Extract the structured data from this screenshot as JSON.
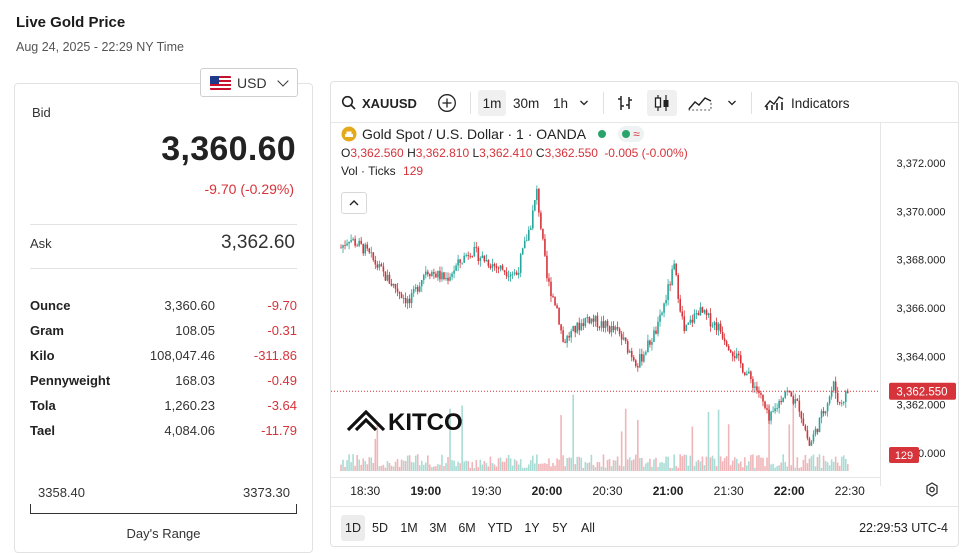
{
  "header": {
    "title": "Live Gold Price",
    "date": "Aug 24, 2025 - 22:29 NY Time"
  },
  "currency": {
    "selected": "USD"
  },
  "quote": {
    "bid_label": "Bid",
    "bid": "3,360.60",
    "change": "-9.70 (-0.29%)",
    "ask_label": "Ask",
    "ask": "3,362.60"
  },
  "units": [
    {
      "name": "Ounce",
      "price": "3,360.60",
      "change": "-9.70"
    },
    {
      "name": "Gram",
      "price": "108.05",
      "change": "-0.31"
    },
    {
      "name": "Kilo",
      "price": "108,047.46",
      "change": "-311.86"
    },
    {
      "name": "Pennyweight",
      "price": "168.03",
      "change": "-0.49"
    },
    {
      "name": "Tola",
      "price": "1,260.23",
      "change": "-3.64"
    },
    {
      "name": "Tael",
      "price": "4,084.06",
      "change": "-11.79"
    }
  ],
  "day_range": {
    "low": "3358.40",
    "high": "3373.30",
    "label": "Day's Range"
  },
  "toolbar": {
    "symbol": "XAUUSD",
    "intervals": [
      "1m",
      "30m",
      "1h"
    ],
    "active_interval": "1m",
    "indicators_label": "Indicators"
  },
  "legend": {
    "title": "Gold Spot / U.S. Dollar · 1 · OANDA",
    "o_label": "O",
    "o": "3,362.560",
    "h_label": "H",
    "h": "3,362.810",
    "l_label": "L",
    "l": "3,362.410",
    "c_label": "C",
    "c": "3,362.550",
    "change": "-0.005 (-0.00%)",
    "vol_label": "Vol · Ticks",
    "vol": "129"
  },
  "watermark": "KITCO",
  "price_tag": "3,362.550",
  "volume_tag": "129",
  "range_buttons": [
    "1D",
    "5D",
    "1M",
    "3M",
    "6M",
    "YTD",
    "1Y",
    "5Y",
    "All"
  ],
  "active_range": "1D",
  "clock": "22:29:53 UTC-4",
  "colors": {
    "down": "#d6333a",
    "up": "#26a69a",
    "volume_down": "#f0b5b8",
    "volume_up": "#a8dcd5"
  },
  "chart_data": {
    "type": "candlestick",
    "y_ticks": [
      "3,372.000",
      "3,370.000",
      "3,368.000",
      "3,366.000",
      "3,364.000",
      "3,362.000",
      "3,360.000"
    ],
    "x_ticks": [
      "18:30",
      "19:00",
      "19:30",
      "20:00",
      "20:30",
      "21:00",
      "21:30",
      "22:00",
      "22:30"
    ],
    "ylim": [
      3359.0,
      3373.7
    ],
    "last_price": 3362.55,
    "price_path": [
      {
        "t": "18:18",
        "p": 3368.5
      },
      {
        "t": "18:22",
        "p": 3368.9
      },
      {
        "t": "18:30",
        "p": 3368.4
      },
      {
        "t": "18:40",
        "p": 3367.3
      },
      {
        "t": "18:52",
        "p": 3366.2
      },
      {
        "t": "19:00",
        "p": 3367.6
      },
      {
        "t": "19:10",
        "p": 3367.2
      },
      {
        "t": "19:22",
        "p": 3368.4
      },
      {
        "t": "19:35",
        "p": 3367.7
      },
      {
        "t": "19:45",
        "p": 3367.4
      },
      {
        "t": "19:52",
        "p": 3369.5
      },
      {
        "t": "19:55",
        "p": 3370.8
      },
      {
        "t": "20:00",
        "p": 3367.2
      },
      {
        "t": "20:05",
        "p": 3366.0
      },
      {
        "t": "20:08",
        "p": 3364.6
      },
      {
        "t": "20:20",
        "p": 3365.6
      },
      {
        "t": "20:35",
        "p": 3365.0
      },
      {
        "t": "20:45",
        "p": 3363.7
      },
      {
        "t": "20:55",
        "p": 3365.2
      },
      {
        "t": "21:03",
        "p": 3367.7
      },
      {
        "t": "21:08",
        "p": 3365.0
      },
      {
        "t": "21:15",
        "p": 3365.9
      },
      {
        "t": "21:25",
        "p": 3365.2
      },
      {
        "t": "21:35",
        "p": 3363.8
      },
      {
        "t": "21:45",
        "p": 3362.5
      },
      {
        "t": "21:50",
        "p": 3361.3
      },
      {
        "t": "21:58",
        "p": 3362.6
      },
      {
        "t": "22:05",
        "p": 3361.9
      },
      {
        "t": "22:10",
        "p": 3360.3
      },
      {
        "t": "22:15",
        "p": 3361.3
      },
      {
        "t": "22:22",
        "p": 3362.8
      },
      {
        "t": "22:25",
        "p": 3362.0
      },
      {
        "t": "22:29",
        "p": 3362.55
      }
    ],
    "grid": false
  }
}
